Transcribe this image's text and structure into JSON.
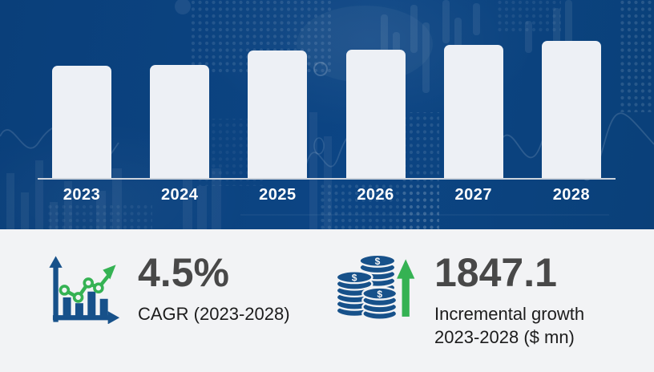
{
  "colors": {
    "chart_bg": "#0b4280",
    "panel_bg": "#f2f3f5",
    "bar_fill": "#edf0f5",
    "axis_line": "#ccd3dc",
    "label_on_dark": "#ffffff",
    "icon_blue": "#17518a",
    "accent_green": "#35b253",
    "value_text": "#484848",
    "label_text": "#1c1c1c"
  },
  "chart_data": {
    "type": "bar",
    "title": "",
    "categories": [
      "2023",
      "2024",
      "2025",
      "2026",
      "2027",
      "2028"
    ],
    "values": [
      140,
      141,
      159,
      160,
      166,
      171
    ],
    "values_unit": "bar height px (no numeric axis labels shown)",
    "xlabel": "",
    "ylabel": "",
    "grid": false,
    "legend": false,
    "bar_color": "#edf0f5"
  },
  "stats": {
    "cagr": {
      "value": "4.5%",
      "label": "CAGR (2023-2028)",
      "icon": "growth-chart-icon"
    },
    "incremental_growth": {
      "value": "1847.1",
      "label_line1": "Incremental growth",
      "label_line2": "2023-2028 ($ mn)",
      "icon": "coins-up-arrow-icon"
    }
  },
  "icons": {
    "growth_chart": "bar chart with axes and rising green trend line with arrow",
    "coins": "three stacks of dollar coins",
    "up_arrow": "green upward arrow"
  }
}
